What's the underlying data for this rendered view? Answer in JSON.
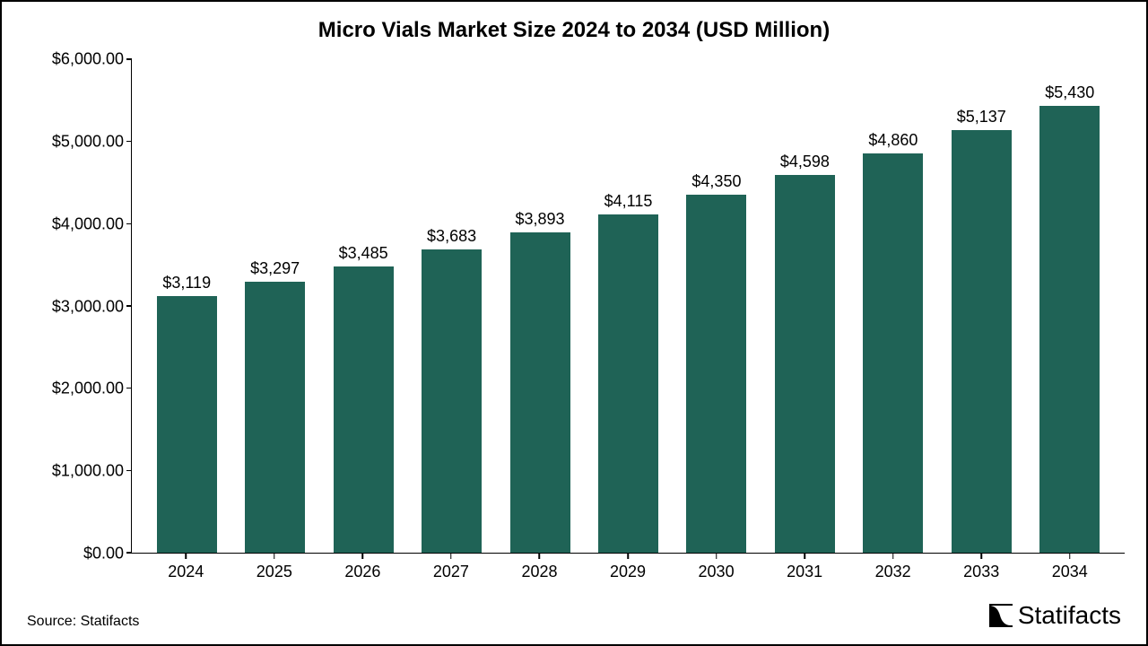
{
  "chart": {
    "type": "bar",
    "title": "Micro Vials Market Size 2024 to 2034 (USD Million)",
    "title_fontsize": 24,
    "title_fontweight": 700,
    "categories": [
      "2024",
      "2025",
      "2026",
      "2027",
      "2028",
      "2029",
      "2030",
      "2031",
      "2032",
      "2033",
      "2034"
    ],
    "values": [
      3119,
      3297,
      3485,
      3683,
      3893,
      4115,
      4350,
      4598,
      4860,
      5137,
      5430
    ],
    "value_labels": [
      "$3,119",
      "$3,297",
      "$3,485",
      "$3,683",
      "$3,893",
      "$4,115",
      "$4,350",
      "$4,598",
      "$4,860",
      "$5,137",
      "$5,430"
    ],
    "bar_color": "#1f6356",
    "background_color": "#ffffff",
    "border_color": "#000000",
    "axis_color": "#000000",
    "text_color": "#000000",
    "ylim": [
      0,
      6000
    ],
    "ytick_step": 1000,
    "ytick_labels": [
      "$0.00",
      "$1,000.00",
      "$2,000.00",
      "$3,000.00",
      "$4,000.00",
      "$5,000.00",
      "$6,000.00"
    ],
    "axis_label_fontsize": 18,
    "value_label_fontsize": 18,
    "bar_width_ratio": 0.68
  },
  "footer": {
    "source": "Source: Statifacts",
    "source_fontsize": 16,
    "brand": "Statifacts",
    "brand_fontsize": 28,
    "brand_icon_color": "#000000"
  }
}
